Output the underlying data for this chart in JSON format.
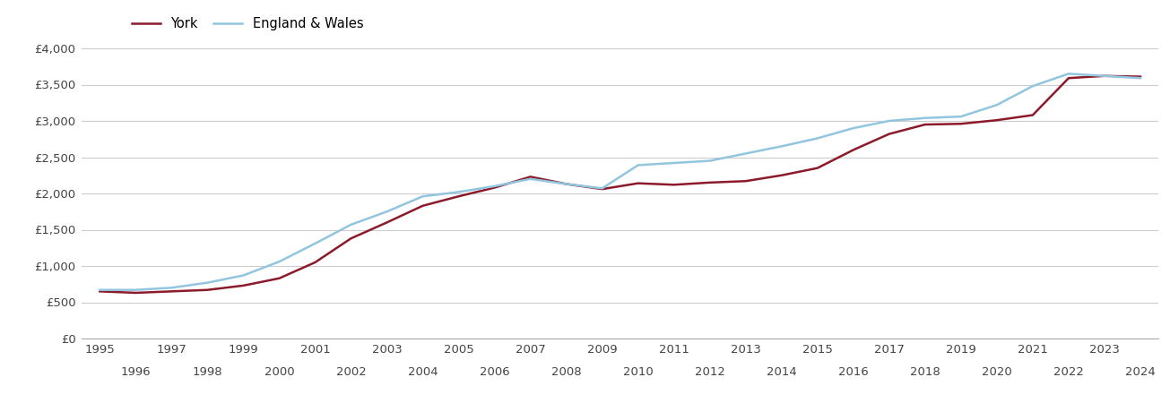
{
  "york_years": [
    1995,
    1996,
    1997,
    1998,
    1999,
    2000,
    2001,
    2002,
    2003,
    2004,
    2005,
    2006,
    2007,
    2008,
    2009,
    2010,
    2011,
    2012,
    2013,
    2014,
    2015,
    2016,
    2017,
    2018,
    2019,
    2020,
    2021,
    2022,
    2023,
    2024
  ],
  "york_values": [
    650,
    630,
    650,
    670,
    730,
    830,
    1050,
    1380,
    1600,
    1830,
    1960,
    2080,
    2230,
    2130,
    2060,
    2140,
    2120,
    2150,
    2170,
    2250,
    2350,
    2600,
    2820,
    2950,
    2960,
    3010,
    3080,
    3590,
    3620,
    3610
  ],
  "ew_years": [
    1995,
    1996,
    1997,
    1998,
    1999,
    2000,
    2001,
    2002,
    2003,
    2004,
    2005,
    2006,
    2007,
    2008,
    2009,
    2010,
    2011,
    2012,
    2013,
    2014,
    2015,
    2016,
    2017,
    2018,
    2019,
    2020,
    2021,
    2022,
    2023,
    2024
  ],
  "ew_values": [
    670,
    670,
    700,
    770,
    870,
    1060,
    1310,
    1570,
    1750,
    1960,
    2020,
    2100,
    2200,
    2130,
    2070,
    2390,
    2420,
    2450,
    2550,
    2650,
    2760,
    2900,
    3000,
    3040,
    3060,
    3220,
    3480,
    3650,
    3620,
    3590
  ],
  "york_color": "#8b1a2b",
  "ew_color": "#92c5de",
  "york_label": "York",
  "ew_label": "England & Wales",
  "ylim": [
    0,
    4000
  ],
  "ytick_step": 500,
  "xlim_min": 1994.5,
  "xlim_max": 2024.5,
  "background_color": "#ffffff",
  "grid_color": "#cccccc",
  "tick_label_color": "#444444",
  "legend_fontsize": 10.5,
  "tick_fontsize": 9.5
}
